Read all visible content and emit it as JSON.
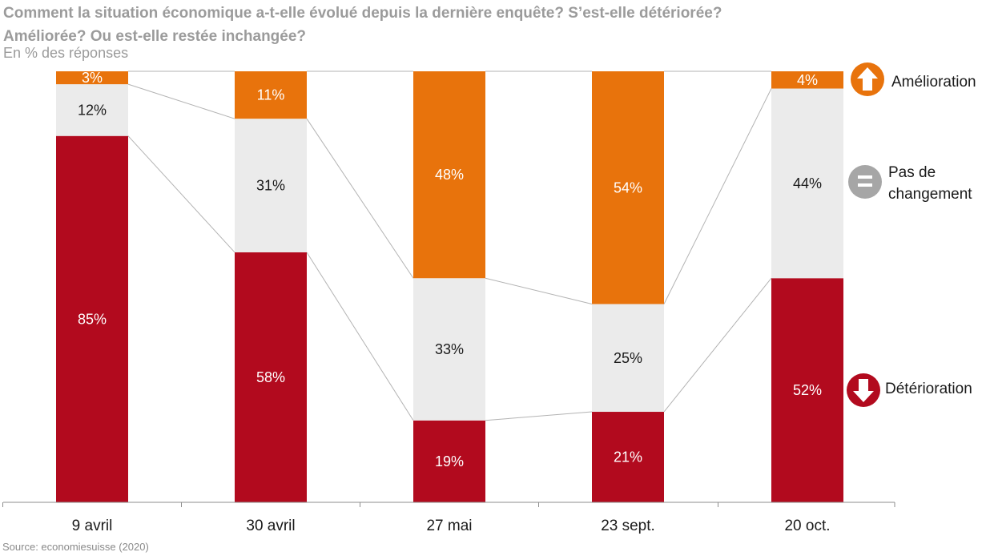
{
  "header": {
    "title_line1": "Comment la situation économique a-t-elle évolué depuis la dernière enquête? S’est-elle détériorée?",
    "title_line2": "Améliorée? Ou est-elle restée inchangée?",
    "subtitle": "En % des réponses"
  },
  "source": "Source: economiesuisse (2020)",
  "colors": {
    "amelioration": "#E8730C",
    "pas_de_changement": "#EBEBEB",
    "deterioration": "#B20A1E",
    "connector": "#b3b3b3",
    "axis": "#8c8c8c"
  },
  "legend": {
    "amelioration": {
      "label": "Amélioration",
      "icon": "arrow-up-icon"
    },
    "pas_de_changement": {
      "label_lines": [
        "Pas de",
        "changement"
      ],
      "icon": "equals-icon"
    },
    "deterioration": {
      "label": "Détérioration",
      "icon": "arrow-down-icon"
    }
  },
  "chart_data": {
    "type": "bar",
    "stacked": true,
    "categories": [
      "9 avril",
      "30 avril",
      "27 mai",
      "23 sept.",
      "20 oct."
    ],
    "series": [
      {
        "key": "deterioration",
        "name": "Détérioration",
        "values": [
          85,
          58,
          19,
          21,
          52
        ],
        "labels": [
          "85%",
          "58%",
          "19%",
          "21%",
          "52%"
        ]
      },
      {
        "key": "pas_de_changement",
        "name": "Pas de changement",
        "values": [
          12,
          31,
          33,
          25,
          44
        ],
        "labels": [
          "12%",
          "31%",
          "33%",
          "25%",
          "44%"
        ]
      },
      {
        "key": "amelioration",
        "name": "Amélioration",
        "values": [
          3,
          11,
          48,
          54,
          4
        ],
        "labels": [
          "3%",
          "11%",
          "48%",
          "54%",
          "4%"
        ]
      }
    ],
    "ylim": [
      0,
      100
    ],
    "grid": false,
    "legend_position": "right"
  }
}
